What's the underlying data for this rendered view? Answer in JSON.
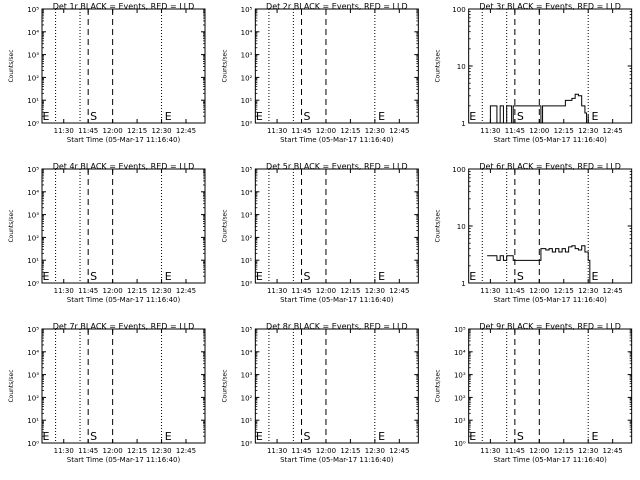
{
  "chart_data": [
    {
      "type": "line",
      "title": "Det 1r BLACK = Events, RED = LLD",
      "xlabel": "Start Time (05-Mar-17 11:16:40)",
      "ylabel": "Counts/sec",
      "x_ticks": [
        "11:30",
        "11:45",
        "12:00",
        "12:15",
        "12:30",
        "12:45"
      ],
      "y_scale": "log",
      "ylim": [
        1,
        100000
      ],
      "y_ticks": [
        {
          "value": 1,
          "label": "10⁰"
        },
        {
          "value": 10,
          "label": "10¹"
        },
        {
          "value": 100,
          "label": "10²"
        },
        {
          "value": 1000,
          "label": "10³"
        },
        {
          "value": 10000,
          "label": "10⁴"
        },
        {
          "value": 100000,
          "label": "10⁵"
        }
      ],
      "dotted_lines": [
        "11:25",
        "11:40",
        "12:30"
      ],
      "dashed_lines": [
        "11:45",
        "12:00"
      ],
      "markers": [
        {
          "text": "E",
          "x": "11:17"
        },
        {
          "text": "S",
          "x": "11:45"
        },
        {
          "text": "E",
          "x": "12:32"
        }
      ],
      "series": []
    },
    {
      "type": "line",
      "title": "Det 2r BLACK = Events, RED = LLD",
      "xlabel": "Start Time (05-Mar-17 11:16:40)",
      "ylabel": "Counts/sec",
      "x_ticks": [
        "11:30",
        "11:45",
        "12:00",
        "12:15",
        "12:30",
        "12:45"
      ],
      "y_scale": "log",
      "ylim": [
        1,
        100000
      ],
      "y_ticks": [
        {
          "value": 1,
          "label": "10⁰"
        },
        {
          "value": 10,
          "label": "10¹"
        },
        {
          "value": 100,
          "label": "10²"
        },
        {
          "value": 1000,
          "label": "10³"
        },
        {
          "value": 10000,
          "label": "10⁴"
        },
        {
          "value": 100000,
          "label": "10⁵"
        }
      ],
      "dotted_lines": [
        "11:25",
        "11:40",
        "12:30"
      ],
      "dashed_lines": [
        "11:45",
        "12:00"
      ],
      "markers": [
        {
          "text": "E",
          "x": "11:17"
        },
        {
          "text": "S",
          "x": "11:45"
        },
        {
          "text": "E",
          "x": "12:32"
        }
      ],
      "series": []
    },
    {
      "type": "line",
      "title": "Det 3r BLACK = Events, RED = LLD",
      "xlabel": "Start Time (05-Mar-17 11:16:40)",
      "ylabel": "Counts/sec",
      "x_ticks": [
        "11:30",
        "11:45",
        "12:00",
        "12:15",
        "12:30",
        "12:45"
      ],
      "y_scale": "log",
      "ylim": [
        1,
        100
      ],
      "y_ticks": [
        {
          "value": 1,
          "label": "1"
        },
        {
          "value": 10,
          "label": "10"
        },
        {
          "value": 100,
          "label": "100"
        }
      ],
      "dotted_lines": [
        "11:25",
        "11:40",
        "12:30"
      ],
      "dashed_lines": [
        "11:45",
        "12:00"
      ],
      "markers": [
        {
          "text": "E",
          "x": "11:17"
        },
        {
          "text": "S",
          "x": "11:45"
        },
        {
          "text": "E",
          "x": "12:32"
        }
      ],
      "series": [
        {
          "x": [
            "11:28",
            "11:30",
            "11:32",
            "11:34",
            "11:36",
            "11:38",
            "11:39",
            "11:40",
            "11:41",
            "11:43",
            "11:44",
            "12:01",
            "12:02",
            "12:03",
            "12:04",
            "12:06",
            "12:08",
            "12:10",
            "12:12",
            "12:14",
            "12:16",
            "12:18",
            "12:20",
            "12:22",
            "12:24",
            "12:26",
            "12:28",
            "12:29",
            "12:30"
          ],
          "values": [
            1,
            2,
            2,
            1,
            2,
            1,
            1,
            2,
            2,
            1,
            2,
            1,
            2,
            2,
            2,
            2,
            2,
            2,
            2,
            2,
            2.5,
            2.5,
            2.7,
            3.2,
            3,
            2,
            1.5,
            1,
            1.4
          ]
        }
      ]
    },
    {
      "type": "line",
      "title": "Det 4r BLACK = Events, RED = LLD",
      "xlabel": "Start Time (05-Mar-17 11:16:40)",
      "ylabel": "Counts/sec",
      "x_ticks": [
        "11:30",
        "11:45",
        "12:00",
        "12:15",
        "12:30",
        "12:45"
      ],
      "y_scale": "log",
      "ylim": [
        1,
        100000
      ],
      "y_ticks": [
        {
          "value": 1,
          "label": "10⁰"
        },
        {
          "value": 10,
          "label": "10¹"
        },
        {
          "value": 100,
          "label": "10²"
        },
        {
          "value": 1000,
          "label": "10³"
        },
        {
          "value": 10000,
          "label": "10⁴"
        },
        {
          "value": 100000,
          "label": "10⁵"
        }
      ],
      "dotted_lines": [
        "11:25",
        "11:40",
        "12:30"
      ],
      "dashed_lines": [
        "11:45",
        "12:00"
      ],
      "markers": [
        {
          "text": "E",
          "x": "11:17"
        },
        {
          "text": "S",
          "x": "11:45"
        },
        {
          "text": "E",
          "x": "12:32"
        }
      ],
      "series": []
    },
    {
      "type": "line",
      "title": "Det 5r BLACK = Events, RED = LLD",
      "xlabel": "Start Time (05-Mar-17 11:16:40)",
      "ylabel": "Counts/sec",
      "x_ticks": [
        "11:30",
        "11:45",
        "12:00",
        "12:15",
        "12:30",
        "12:45"
      ],
      "y_scale": "log",
      "ylim": [
        1,
        100000
      ],
      "y_ticks": [
        {
          "value": 1,
          "label": "10⁰"
        },
        {
          "value": 10,
          "label": "10¹"
        },
        {
          "value": 100,
          "label": "10²"
        },
        {
          "value": 1000,
          "label": "10³"
        },
        {
          "value": 10000,
          "label": "10⁴"
        },
        {
          "value": 100000,
          "label": "10⁵"
        }
      ],
      "dotted_lines": [
        "11:25",
        "11:40",
        "12:30"
      ],
      "dashed_lines": [
        "11:45",
        "12:00"
      ],
      "markers": [
        {
          "text": "E",
          "x": "11:17"
        },
        {
          "text": "S",
          "x": "11:45"
        },
        {
          "text": "E",
          "x": "12:32"
        }
      ],
      "series": []
    },
    {
      "type": "line",
      "title": "Det 6r BLACK = Events, RED = LLD",
      "xlabel": "Start Time (05-Mar-17 11:16:40)",
      "ylabel": "Counts/sec",
      "x_ticks": [
        "11:30",
        "11:45",
        "12:00",
        "12:15",
        "12:30",
        "12:45"
      ],
      "y_scale": "log",
      "ylim": [
        1,
        100
      ],
      "y_ticks": [
        {
          "value": 1,
          "label": "1"
        },
        {
          "value": 10,
          "label": "10"
        },
        {
          "value": 100,
          "label": "100"
        }
      ],
      "dotted_lines": [
        "11:25",
        "11:40",
        "12:30"
      ],
      "dashed_lines": [
        "11:45",
        "12:00"
      ],
      "markers": [
        {
          "text": "E",
          "x": "11:17"
        },
        {
          "text": "S",
          "x": "11:45"
        },
        {
          "text": "E",
          "x": "12:32"
        }
      ],
      "series": [
        {
          "x": [
            "11:28",
            "11:30",
            "11:32",
            "11:34",
            "11:36",
            "11:38",
            "11:40",
            "11:42",
            "11:44",
            "12:01",
            "12:02",
            "12:04",
            "12:06",
            "12:08",
            "12:10",
            "12:12",
            "12:14",
            "12:16",
            "12:18",
            "12:20",
            "12:22",
            "12:24",
            "12:26",
            "12:28",
            "12:29",
            "12:30",
            "12:31"
          ],
          "values": [
            3,
            3,
            3,
            2.5,
            3,
            2.5,
            3,
            3,
            2.5,
            4,
            4,
            3.8,
            4,
            3.5,
            4,
            3.5,
            4,
            3.5,
            4.3,
            4.5,
            4,
            3.8,
            4.5,
            3.5,
            3.5,
            2.5,
            1
          ]
        }
      ]
    },
    {
      "type": "line",
      "title": "Det 7r BLACK = Events, RED = LLD",
      "xlabel": "Start Time (05-Mar-17 11:16:40)",
      "ylabel": "Counts/sec",
      "x_ticks": [
        "11:30",
        "11:45",
        "12:00",
        "12:15",
        "12:30",
        "12:45"
      ],
      "y_scale": "log",
      "ylim": [
        1,
        100000
      ],
      "y_ticks": [
        {
          "value": 1,
          "label": "10⁰"
        },
        {
          "value": 10,
          "label": "10¹"
        },
        {
          "value": 100,
          "label": "10²"
        },
        {
          "value": 1000,
          "label": "10³"
        },
        {
          "value": 10000,
          "label": "10⁴"
        },
        {
          "value": 100000,
          "label": "10⁵"
        }
      ],
      "dotted_lines": [
        "11:25",
        "11:40",
        "12:30"
      ],
      "dashed_lines": [
        "11:45",
        "12:00"
      ],
      "markers": [
        {
          "text": "E",
          "x": "11:17"
        },
        {
          "text": "S",
          "x": "11:45"
        },
        {
          "text": "E",
          "x": "12:32"
        }
      ],
      "series": []
    },
    {
      "type": "line",
      "title": "Det 8r BLACK = Events, RED = LLD",
      "xlabel": "Start Time (05-Mar-17 11:16:40)",
      "ylabel": "Counts/sec",
      "x_ticks": [
        "11:30",
        "11:45",
        "12:00",
        "12:15",
        "12:30",
        "12:45"
      ],
      "y_scale": "log",
      "ylim": [
        1,
        100000
      ],
      "y_ticks": [
        {
          "value": 1,
          "label": "10⁰"
        },
        {
          "value": 10,
          "label": "10¹"
        },
        {
          "value": 100,
          "label": "10²"
        },
        {
          "value": 1000,
          "label": "10³"
        },
        {
          "value": 10000,
          "label": "10⁴"
        },
        {
          "value": 100000,
          "label": "10⁵"
        }
      ],
      "dotted_lines": [
        "11:25",
        "11:40",
        "12:30"
      ],
      "dashed_lines": [
        "11:45",
        "12:00"
      ],
      "markers": [
        {
          "text": "E",
          "x": "11:17"
        },
        {
          "text": "S",
          "x": "11:45"
        },
        {
          "text": "E",
          "x": "12:32"
        }
      ],
      "series": []
    },
    {
      "type": "line",
      "title": "Det 9r BLACK = Events, RED = LLD",
      "xlabel": "Start Time (05-Mar-17 11:16:40)",
      "ylabel": "Counts/sec",
      "x_ticks": [
        "11:30",
        "11:45",
        "12:00",
        "12:15",
        "12:30",
        "12:45"
      ],
      "y_scale": "log",
      "ylim": [
        1,
        100000
      ],
      "y_ticks": [
        {
          "value": 1,
          "label": "10⁰"
        },
        {
          "value": 10,
          "label": "10¹"
        },
        {
          "value": 100,
          "label": "10²"
        },
        {
          "value": 1000,
          "label": "10³"
        },
        {
          "value": 10000,
          "label": "10⁴"
        },
        {
          "value": 100000,
          "label": "10⁵"
        }
      ],
      "dotted_lines": [
        "11:25",
        "11:40",
        "12:30"
      ],
      "dashed_lines": [
        "11:45",
        "12:00"
      ],
      "markers": [
        {
          "text": "E",
          "x": "11:17"
        },
        {
          "text": "S",
          "x": "11:45"
        },
        {
          "text": "E",
          "x": "12:32"
        }
      ],
      "series": []
    }
  ]
}
